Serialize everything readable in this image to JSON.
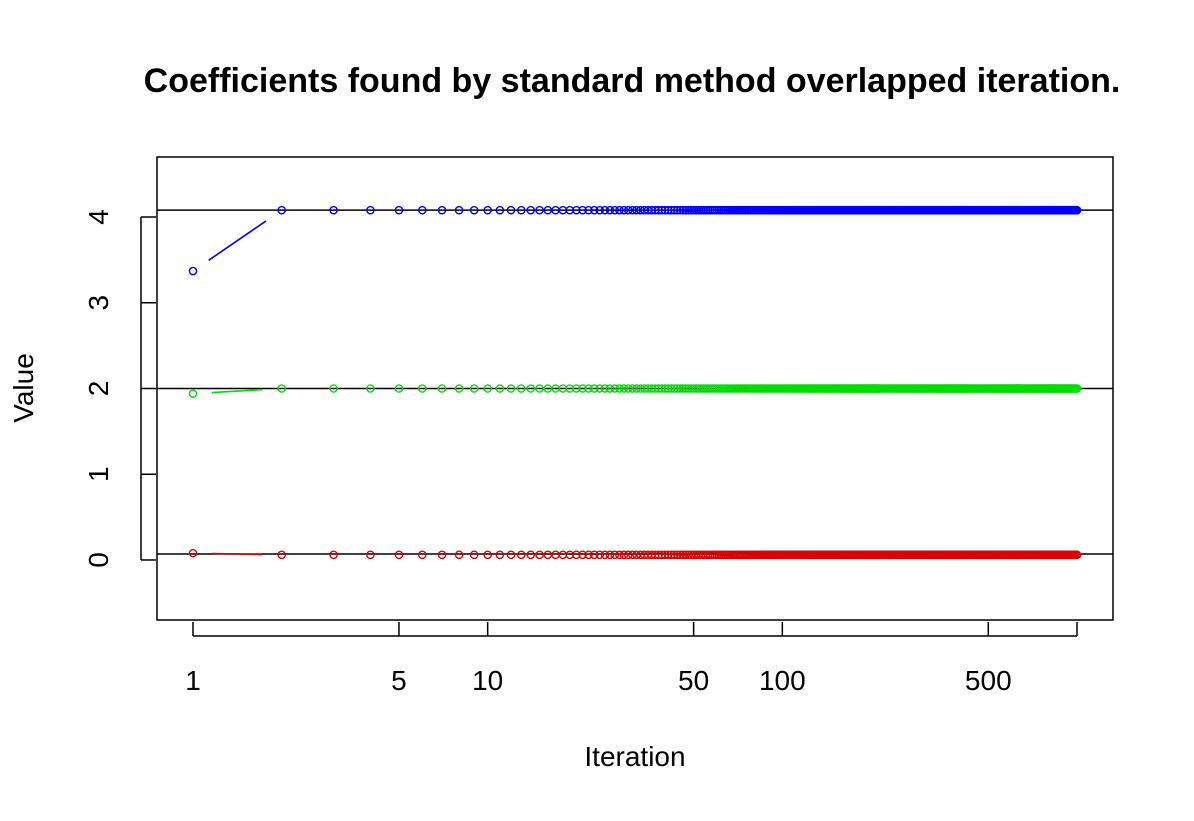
{
  "chart_data": {
    "type": "scatter",
    "title": "Coefficients found by standard method overlapped iteration.",
    "xlabel": "Iteration",
    "ylabel": "Value",
    "x_scale": "log",
    "xlim": [
      1,
      1000
    ],
    "ylim": [
      -0.7,
      4.7
    ],
    "x_ticks": [
      1,
      5,
      10,
      50,
      100,
      500,
      1000
    ],
    "x_tick_labels": [
      "1",
      "5",
      "10",
      "50",
      "100",
      "500",
      ""
    ],
    "y_ticks": [
      0,
      1,
      2,
      3,
      4
    ],
    "y_tick_labels": [
      "0",
      "1",
      "2",
      "3",
      "4"
    ],
    "reference_lines": [
      4.08,
      2.0,
      0.07
    ],
    "reference_line_color": "#000000",
    "iterations": {
      "start": 1,
      "end": 1000
    },
    "series": [
      {
        "color": "#0000ff",
        "first_value": 3.37,
        "converged_value": 4.08
      },
      {
        "color": "#00dd00",
        "first_value": 1.94,
        "converged_value": 2.0
      },
      {
        "color": "#dd0000",
        "first_value": 0.08,
        "converged_value": 0.06
      }
    ],
    "grid": false,
    "legend": "none"
  }
}
